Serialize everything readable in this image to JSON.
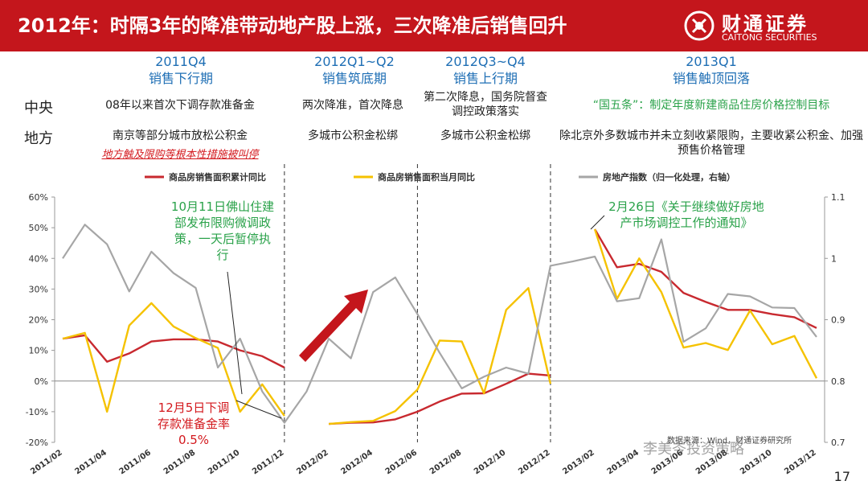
{
  "banner": {
    "title": "2012年：时隔3年的降准带动地产股上涨，三次降准后销售回升",
    "logo_cn": "财通证券",
    "logo_en": "CAITONG SECURITIES"
  },
  "periods": [
    {
      "code": "2011Q4",
      "name": "销售下行期"
    },
    {
      "code": "2012Q1~Q2",
      "name": "销售筑底期"
    },
    {
      "code": "2012Q3~Q4",
      "name": "销售上行期"
    },
    {
      "code": "2013Q1",
      "name": "销售触顶回落"
    }
  ],
  "row_labels": {
    "central": "中央",
    "local": "地方"
  },
  "central_notes": [
    "08年以来首次下调存款准备金",
    "两次降准，首次降息",
    "第二次降息，国务院督查调控政策落实",
    "“国五条”：制定年度新建商品住房价格控制目标"
  ],
  "local_notes": [
    "南京等部分城市放松公积金",
    "多城市公积金松绑",
    "多城市公积金松绑",
    "除北京外多数城市并未立刻收紧限购，主要收紧公积金、加强预售价格管理"
  ],
  "local_highlight": "地方触及限购等根本性措施被叫停",
  "annotations": {
    "foshan": "10月11日佛山住建部发布限购微调政策，一天后暂停执行",
    "rrr_cut": "12月5日下调存款准备金率0.5%",
    "notice": "2月26日《关于继续做好房地产市场调控工作的通知》"
  },
  "source_text": "数据来源：Wind，财通证券研究所",
  "watermark": "李美岑投资策略",
  "page_number": "17",
  "colors": {
    "brand": "#c4161c",
    "cumulative": "#c8292f",
    "monthly": "#f5c200",
    "index": "#a6a6a6",
    "green": "#2aa24a",
    "blue": "#1f6fb5"
  },
  "chart_data": {
    "type": "line",
    "x": [
      "2011/02",
      "2011/03",
      "2011/04",
      "2011/05",
      "2011/06",
      "2011/07",
      "2011/08",
      "2011/09",
      "2011/10",
      "2011/11",
      "2011/12",
      "2012/01",
      "2012/02",
      "2012/03",
      "2012/04",
      "2012/05",
      "2012/06",
      "2012/07",
      "2012/08",
      "2012/09",
      "2012/10",
      "2012/11",
      "2012/12",
      "2013/01",
      "2013/02",
      "2013/03",
      "2013/04",
      "2013/05",
      "2013/06",
      "2013/07",
      "2013/08",
      "2013/09",
      "2013/10",
      "2013/11",
      "2013/12"
    ],
    "x_tick_labels": [
      "2011/02",
      "2011/04",
      "2011/06",
      "2011/08",
      "2011/10",
      "2011/12",
      "2012/02",
      "2012/04",
      "2012/06",
      "2012/08",
      "2012/10",
      "2012/12",
      "2013/02",
      "2013/04",
      "2013/06",
      "2013/08",
      "2013/10",
      "2013/12"
    ],
    "series": [
      {
        "name": "商品房销售面积累计同比",
        "axis": "left",
        "values": [
          13.8,
          14.9,
          6.3,
          9.0,
          12.9,
          13.6,
          13.6,
          12.9,
          10.0,
          8.1,
          4.4,
          null,
          -14.0,
          -13.6,
          -13.5,
          -12.5,
          -10.0,
          -6.7,
          -4.1,
          -4.0,
          -0.9,
          2.4,
          1.8,
          null,
          49.5,
          37.1,
          38.2,
          35.6,
          28.7,
          25.8,
          23.2,
          23.2,
          21.8,
          20.8,
          17.3
        ]
      },
      {
        "name": "商品房销售面积当月同比",
        "axis": "left",
        "values": [
          13.8,
          15.7,
          -10.0,
          18.1,
          25.4,
          17.8,
          14.0,
          10.8,
          -10.0,
          -1.1,
          -11.4,
          null,
          -14.0,
          -13.4,
          -13.0,
          -9.8,
          -2.8,
          13.2,
          12.9,
          -4.0,
          23.2,
          30.3,
          -0.9,
          null,
          49.5,
          26.8,
          40.0,
          29.0,
          10.9,
          12.4,
          10.1,
          23.0,
          12.0,
          14.7,
          0.9
        ]
      },
      {
        "name": "房地产指数（归一化处理，右轴）",
        "axis": "right",
        "values": [
          1.0,
          1.055,
          1.023,
          0.946,
          1.011,
          0.976,
          0.952,
          0.822,
          0.869,
          0.783,
          0.732,
          0.783,
          0.869,
          0.837,
          0.945,
          0.969,
          0.909,
          0.846,
          0.788,
          0.807,
          0.822,
          0.812,
          0.988,
          0.995,
          1.003,
          0.93,
          0.935,
          1.031,
          0.864,
          0.886,
          0.942,
          0.938,
          0.92,
          0.919,
          0.872
        ]
      }
    ],
    "y_left": {
      "lim": [
        -20,
        60
      ],
      "ticks": [
        "-20%",
        "-10%",
        "0%",
        "10%",
        "20%",
        "30%",
        "40%",
        "50%",
        "60%"
      ]
    },
    "y_right": {
      "lim": [
        0.7,
        1.1
      ],
      "ticks": [
        "0.7",
        "0.8",
        "0.9",
        "1",
        "1.1"
      ]
    },
    "period_dividers": [
      "2011/12",
      "2012/06",
      "2012/12"
    ],
    "grid": false,
    "legend_position": "top"
  }
}
